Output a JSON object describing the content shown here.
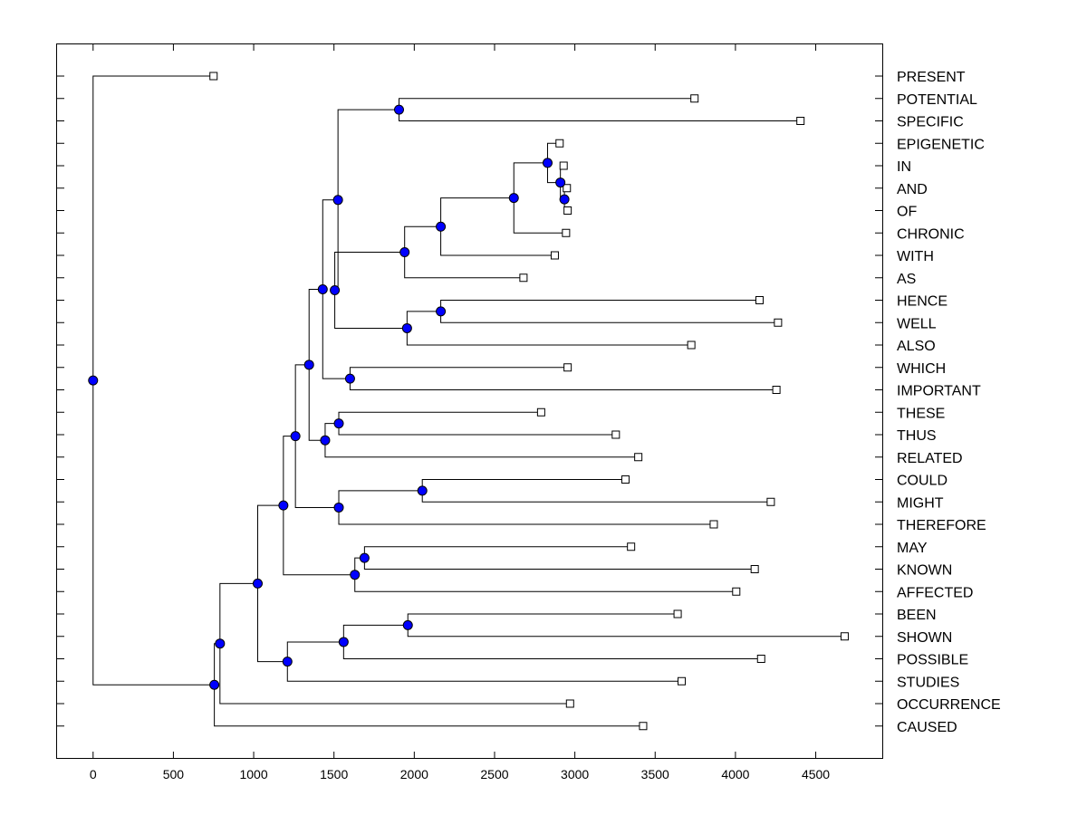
{
  "chart_data": {
    "type": "dendrogram",
    "x_ticks": [
      0,
      500,
      1000,
      1500,
      2000,
      2500,
      3000,
      3500,
      4000,
      4500
    ],
    "xlim": [
      -230,
      4920
    ],
    "grid": false,
    "node_color": "#0000ff",
    "leaves": [
      {
        "label": "PRESENT",
        "x": 750
      },
      {
        "label": "POTENTIAL",
        "x": 3745
      },
      {
        "label": "SPECIFIC",
        "x": 4405
      },
      {
        "label": "EPIGENETIC",
        "x": 2905
      },
      {
        "label": "IN",
        "x": 2930
      },
      {
        "label": "AND",
        "x": 2950
      },
      {
        "label": "OF",
        "x": 2955
      },
      {
        "label": "CHRONIC",
        "x": 2945
      },
      {
        "label": "WITH",
        "x": 2875
      },
      {
        "label": "AS",
        "x": 2680
      },
      {
        "label": "HENCE",
        "x": 4150
      },
      {
        "label": "WELL",
        "x": 4265
      },
      {
        "label": "ALSO",
        "x": 3725
      },
      {
        "label": "WHICH",
        "x": 2955
      },
      {
        "label": "IMPORTANT",
        "x": 4255
      },
      {
        "label": "THESE",
        "x": 2790
      },
      {
        "label": "THUS",
        "x": 3255
      },
      {
        "label": "RELATED",
        "x": 3395
      },
      {
        "label": "COULD",
        "x": 3315
      },
      {
        "label": "MIGHT",
        "x": 4220
      },
      {
        "label": "THEREFORE",
        "x": 3865
      },
      {
        "label": "MAY",
        "x": 3350
      },
      {
        "label": "KNOWN",
        "x": 4120
      },
      {
        "label": "AFFECTED",
        "x": 4005
      },
      {
        "label": "BEEN",
        "x": 3640
      },
      {
        "label": "SHOWN",
        "x": 4680
      },
      {
        "label": "POSSIBLE",
        "x": 4160
      },
      {
        "label": "STUDIES",
        "x": 3665
      },
      {
        "label": "OCCURRENCE",
        "x": 2970
      },
      {
        "label": "CAUSED",
        "x": 3425
      }
    ],
    "merges": [
      {
        "id": "n1",
        "x": 2935,
        "children": [
          "AND",
          "OF"
        ]
      },
      {
        "id": "n2",
        "x": 2910,
        "children": [
          "IN",
          "n1"
        ]
      },
      {
        "id": "n3",
        "x": 2830,
        "children": [
          "EPIGENETIC",
          "n2"
        ]
      },
      {
        "id": "n4",
        "x": 2620,
        "children": [
          "n3",
          "CHRONIC"
        ]
      },
      {
        "id": "n5",
        "x": 2165,
        "children": [
          "n4",
          "WITH"
        ]
      },
      {
        "id": "n6",
        "x": 1940,
        "children": [
          "n5",
          "AS"
        ]
      },
      {
        "id": "n7",
        "x": 2165,
        "children": [
          "HENCE",
          "WELL"
        ]
      },
      {
        "id": "n8",
        "x": 1955,
        "children": [
          "n7",
          "ALSO"
        ]
      },
      {
        "id": "n9",
        "x": 1505,
        "children": [
          "n6",
          "n8"
        ]
      },
      {
        "id": "n10",
        "x": 1905,
        "children": [
          "POTENTIAL",
          "SPECIFIC"
        ]
      },
      {
        "id": "n11",
        "x": 1525,
        "children": [
          "n10",
          "n9"
        ]
      },
      {
        "id": "n12",
        "x": 1600,
        "children": [
          "WHICH",
          "IMPORTANT"
        ]
      },
      {
        "id": "n13",
        "x": 1430,
        "children": [
          "n11",
          "n12"
        ]
      },
      {
        "id": "n14",
        "x": 1530,
        "children": [
          "THESE",
          "THUS"
        ]
      },
      {
        "id": "n15",
        "x": 1445,
        "children": [
          "n14",
          "RELATED"
        ]
      },
      {
        "id": "n16",
        "x": 1345,
        "children": [
          "n13",
          "n15"
        ]
      },
      {
        "id": "n17",
        "x": 2050,
        "children": [
          "COULD",
          "MIGHT"
        ]
      },
      {
        "id": "n18",
        "x": 1530,
        "children": [
          "n17",
          "THEREFORE"
        ]
      },
      {
        "id": "n19",
        "x": 1260,
        "children": [
          "n16",
          "n18"
        ]
      },
      {
        "id": "n20",
        "x": 1690,
        "children": [
          "MAY",
          "KNOWN"
        ]
      },
      {
        "id": "n21",
        "x": 1630,
        "children": [
          "n20",
          "AFFECTED"
        ]
      },
      {
        "id": "n22",
        "x": 1185,
        "children": [
          "n19",
          "n21"
        ]
      },
      {
        "id": "n23",
        "x": 1960,
        "children": [
          "BEEN",
          "SHOWN"
        ]
      },
      {
        "id": "n24",
        "x": 1560,
        "children": [
          "n23",
          "POSSIBLE"
        ]
      },
      {
        "id": "n25",
        "x": 1210,
        "children": [
          "n24",
          "STUDIES"
        ]
      },
      {
        "id": "n26",
        "x": 1025,
        "children": [
          "n22",
          "n25"
        ]
      },
      {
        "id": "n27",
        "x": 790,
        "children": [
          "n26",
          "OCCURRENCE"
        ]
      },
      {
        "id": "n28",
        "x": 755,
        "children": [
          "n27",
          "CAUSED"
        ]
      },
      {
        "id": "n29",
        "x": 0,
        "children": [
          "PRESENT",
          "n28"
        ]
      }
    ]
  }
}
